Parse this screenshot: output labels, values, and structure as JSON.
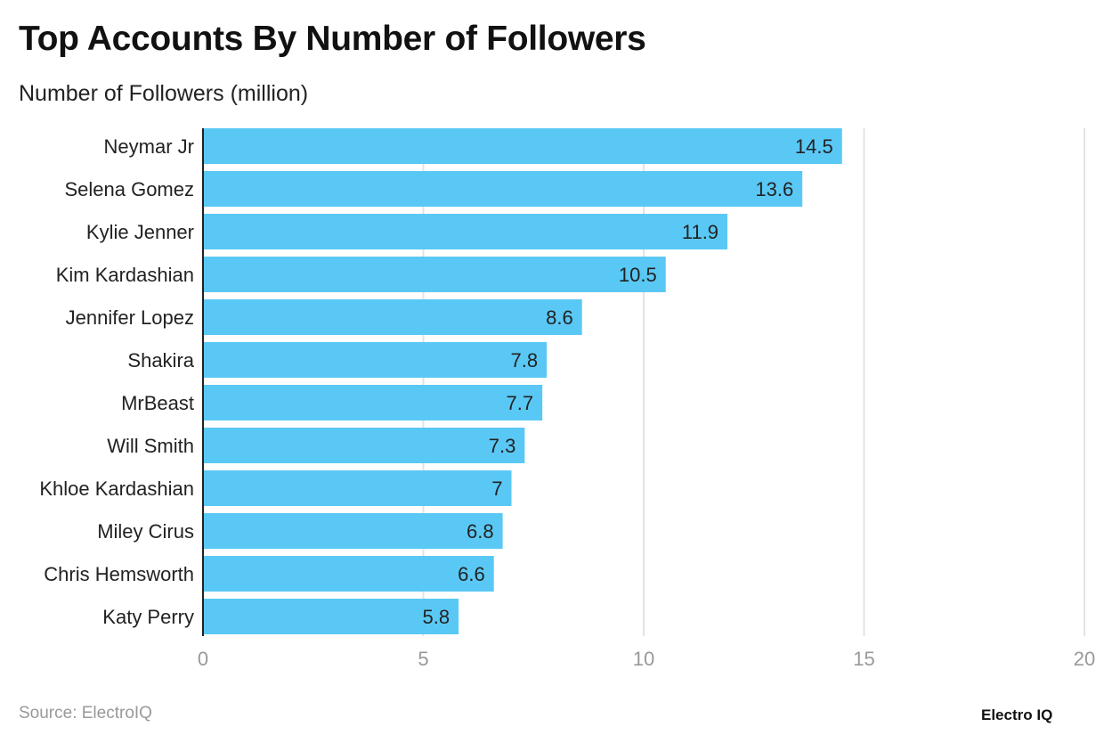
{
  "chart_data": {
    "type": "bar",
    "orientation": "horizontal",
    "title": "Top Accounts By Number of Followers",
    "subtitle": "Number of Followers (million)",
    "categories": [
      "Neymar Jr",
      "Selena Gomez",
      "Kylie Jenner",
      "Kim Kardashian",
      "Jennifer Lopez",
      "Shakira",
      "MrBeast",
      "Will Smith",
      "Khloe Kardashian",
      "Miley Cirus",
      "Chris Hemsworth",
      "Katy Perry"
    ],
    "values": [
      14.5,
      13.6,
      11.9,
      10.5,
      8.6,
      7.8,
      7.7,
      7.3,
      7,
      6.8,
      6.6,
      5.8
    ],
    "xlim": [
      0,
      20
    ],
    "xticks": [
      0,
      5,
      10,
      15,
      20
    ],
    "grid": true,
    "bar_color": "#5AC8F5",
    "data_labels": true
  },
  "footer": {
    "source": "Source: ElectroIQ",
    "logo": "Electro IQ"
  }
}
